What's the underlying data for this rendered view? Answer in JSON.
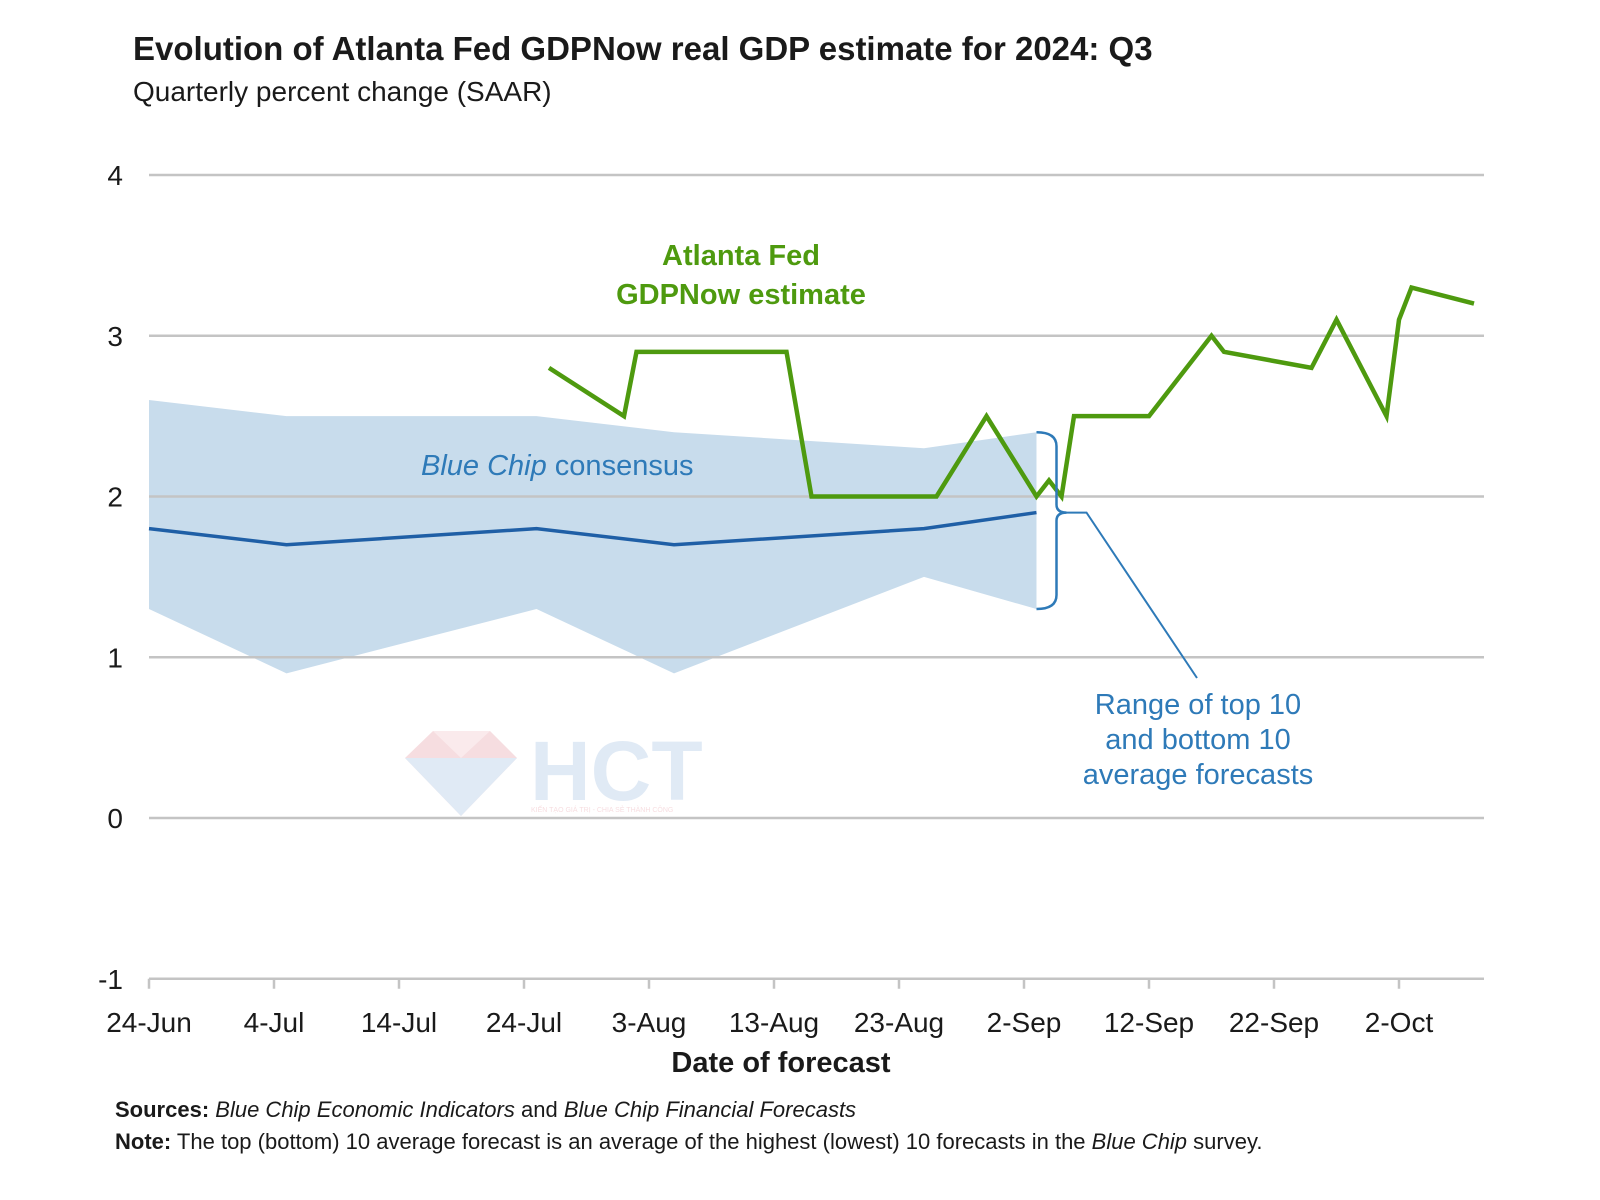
{
  "header": {
    "title": "Evolution of Atlanta Fed GDPNow real GDP estimate for 2024: Q3",
    "subtitle": "Quarterly percent change (SAAR)"
  },
  "colors": {
    "gdpnow": "#4e9a0f",
    "consensus": "#1f5fa6",
    "band": "#c8dcec",
    "annotation_blue": "#2e7ab8",
    "grid": "#c4c4c4"
  },
  "annotations": {
    "gdpnow_line1": "Atlanta Fed",
    "gdpnow_line2": "GDPNow estimate",
    "consensus_italic": "Blue Chip",
    "consensus_rest": " consensus",
    "range_line1": "Range of top 10",
    "range_line2": "and bottom 10",
    "range_line3": "average forecasts"
  },
  "watermark": {
    "text": "HCT",
    "tagline": "KIẾN TẠO GIÁ TRỊ - CHIA SẺ THÀNH CÔNG"
  },
  "footer": {
    "sources_label": "Sources:",
    "sources_italic1": "Blue Chip Economic Indicators",
    "sources_and": " and ",
    "sources_italic2": "Blue Chip Financial Forecasts",
    "note_label": "Note:",
    "note_text": " The top (bottom) 10 average forecast is an average of the highest (lowest) 10 forecasts in the ",
    "note_italic": "Blue Chip",
    "note_end": " survey."
  },
  "chart_data": {
    "type": "line",
    "title": "Evolution of Atlanta Fed GDPNow real GDP estimate for 2024: Q3",
    "subtitle": "Quarterly percent change (SAAR)",
    "xlabel": "Date of forecast",
    "ylabel": "",
    "ylim": [
      -1,
      4
    ],
    "yticks": [
      -1,
      0,
      1,
      2,
      3,
      4
    ],
    "xlim": [
      "2024-06-24",
      "2024-10-09"
    ],
    "xticks": [
      "24-Jun",
      "4-Jul",
      "14-Jul",
      "24-Jul",
      "3-Aug",
      "13-Aug",
      "23-Aug",
      "2-Sep",
      "12-Sep",
      "22-Sep",
      "2-Oct"
    ],
    "grid": "horizontal",
    "series": [
      {
        "name": "Atlanta Fed GDPNow estimate",
        "x": [
          "2024-07-26",
          "2024-08-01",
          "2024-08-02",
          "2024-08-14",
          "2024-08-16",
          "2024-08-26",
          "2024-08-30",
          "2024-09-03",
          "2024-09-04",
          "2024-09-05",
          "2024-09-06",
          "2024-09-12",
          "2024-09-17",
          "2024-09-18",
          "2024-09-25",
          "2024-09-27",
          "2024-10-01",
          "2024-10-02",
          "2024-10-03",
          "2024-10-08"
        ],
        "values": [
          2.8,
          2.5,
          2.9,
          2.9,
          2.0,
          2.0,
          2.5,
          2.0,
          2.1,
          2.0,
          2.5,
          2.5,
          3.0,
          2.9,
          2.8,
          3.1,
          2.5,
          3.1,
          3.3,
          3.2
        ]
      },
      {
        "name": "Blue Chip consensus",
        "x": [
          "2024-06-24",
          "2024-07-05",
          "2024-07-25",
          "2024-08-05",
          "2024-08-25",
          "2024-09-03"
        ],
        "values": [
          1.8,
          1.7,
          1.8,
          1.7,
          1.8,
          1.9
        ]
      }
    ],
    "band": {
      "name": "Range of top 10 and bottom 10 average forecasts",
      "x": [
        "2024-06-24",
        "2024-07-05",
        "2024-07-25",
        "2024-08-05",
        "2024-08-25",
        "2024-09-03"
      ],
      "upper": [
        2.6,
        2.5,
        2.5,
        2.4,
        2.3,
        2.4
      ],
      "lower": [
        1.3,
        0.9,
        1.3,
        0.9,
        1.5,
        1.3
      ]
    }
  }
}
